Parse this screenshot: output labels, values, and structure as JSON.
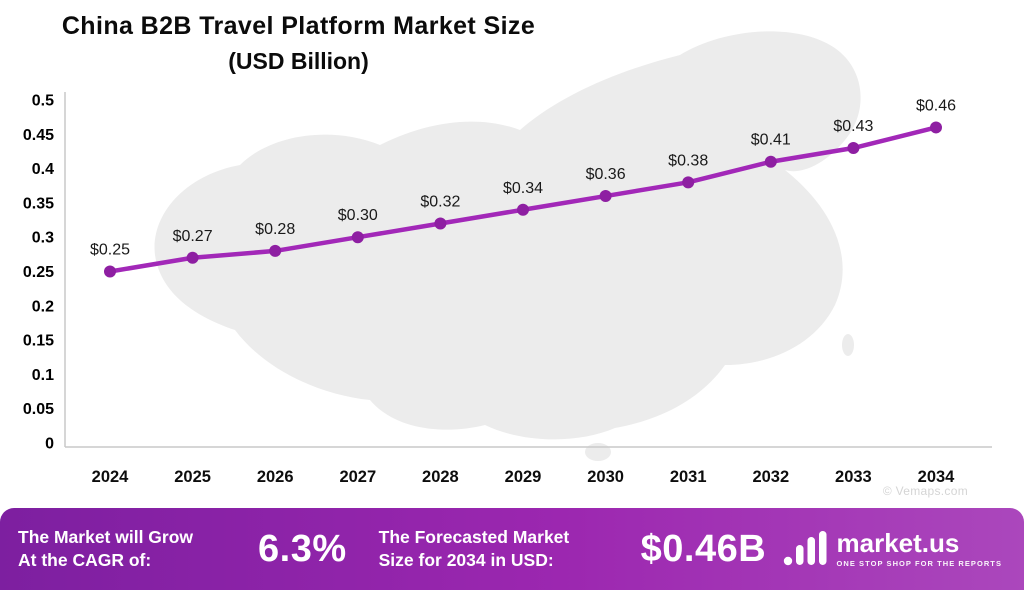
{
  "title": {
    "main": "China B2B Travel Platform Market Size",
    "sub": "(USD Billion)"
  },
  "chart_data": {
    "type": "line",
    "title": "China B2B Travel Platform Market Size",
    "subtitle": "(USD Billion)",
    "x": [
      "2024",
      "2025",
      "2026",
      "2027",
      "2028",
      "2029",
      "2030",
      "2031",
      "2032",
      "2033",
      "2034"
    ],
    "series": [
      {
        "name": "Market Size (USD Billion)",
        "values": [
          0.25,
          0.27,
          0.28,
          0.3,
          0.32,
          0.34,
          0.36,
          0.38,
          0.41,
          0.43,
          0.46
        ]
      }
    ],
    "data_labels": [
      "$0.25",
      "$0.27",
      "$0.28",
      "$0.30",
      "$0.32",
      "$0.34",
      "$0.36",
      "$0.38",
      "$0.41",
      "$0.43",
      "$0.46"
    ],
    "y_ticks": [
      0.5,
      0.45,
      0.4,
      0.35,
      0.3,
      0.25,
      0.2,
      0.15,
      0.1,
      0.05,
      0
    ],
    "y_tick_labels": [
      "0.5",
      "0.45",
      "0.4",
      "0.35",
      "0.3",
      "0.25",
      "0.2",
      "0.15",
      "0.1",
      "0.05",
      "0"
    ],
    "ylim": [
      0,
      0.5
    ],
    "grid": false,
    "legend": "none",
    "line_color": "#a228b8",
    "marker_color": "#8e1fa2"
  },
  "watermark": "© Vemaps.com",
  "footer": {
    "cagr_label_line1": "The Market will Grow",
    "cagr_label_line2": "At the CAGR of:",
    "cagr_value": "6.3%",
    "forecast_label_line1": "The Forecasted Market",
    "forecast_label_line2": "Size for 2034 in USD:",
    "forecast_value": "$0.46B",
    "brand_name": "market.us",
    "brand_tagline": "ONE STOP SHOP FOR THE REPORTS"
  },
  "colors": {
    "line": "#a228b8",
    "footer_purple": "#9c27b0",
    "map_silhouette": "#ececec"
  }
}
